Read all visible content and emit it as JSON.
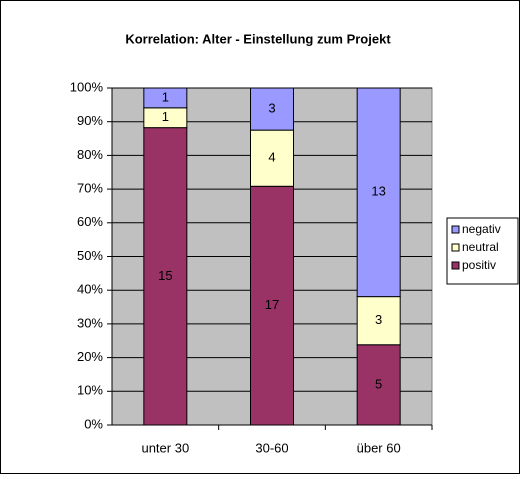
{
  "chart_data": {
    "type": "bar",
    "stacking": "percent",
    "title": "Korrelation: Alter - Einstellung zum Projekt",
    "categories": [
      "unter 30",
      "30-60",
      "über 60"
    ],
    "series": [
      {
        "name": "positiv",
        "color": "#993366",
        "values": [
          15,
          17,
          5
        ]
      },
      {
        "name": "neutral",
        "color": "#ffffcc",
        "values": [
          1,
          4,
          3
        ]
      },
      {
        "name": "negativ",
        "color": "#9999ff",
        "values": [
          1,
          3,
          13
        ]
      }
    ],
    "ylim": [
      0,
      100
    ],
    "yticks": [
      {
        "value": 0,
        "label": "0%"
      },
      {
        "value": 10,
        "label": "10%"
      },
      {
        "value": 20,
        "label": "20%"
      },
      {
        "value": 30,
        "label": "30%"
      },
      {
        "value": 40,
        "label": "40%"
      },
      {
        "value": 50,
        "label": "50%"
      },
      {
        "value": 60,
        "label": "60%"
      },
      {
        "value": 70,
        "label": "70%"
      },
      {
        "value": 80,
        "label": "80%"
      },
      {
        "value": 90,
        "label": "90%"
      },
      {
        "value": 100,
        "label": "100%"
      }
    ],
    "grid": true,
    "legend": "right",
    "plot_background": "#c0c0c0"
  }
}
